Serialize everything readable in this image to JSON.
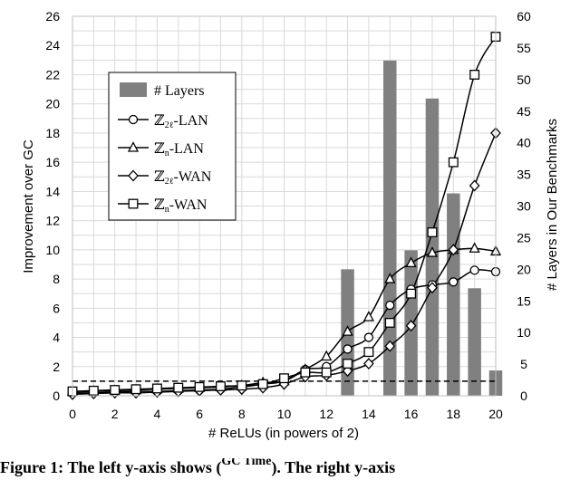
{
  "chart_data": {
    "type": "bar+line",
    "x": [
      0,
      1,
      2,
      3,
      4,
      5,
      6,
      7,
      8,
      9,
      10,
      11,
      12,
      13,
      14,
      15,
      16,
      17,
      18,
      19,
      20
    ],
    "xlabel": "# ReLUs (in powers of 2)",
    "ylabel": "Improvement over GC",
    "y2label": "# Layers in Our Benchmarks",
    "xlim": [
      0,
      20
    ],
    "ylim": [
      0,
      26
    ],
    "y2lim": [
      0,
      60
    ],
    "xticks": [
      "0",
      "2",
      "4",
      "6",
      "8",
      "10",
      "12",
      "14",
      "16",
      "18",
      "20"
    ],
    "yticks": [
      "0",
      "2",
      "4",
      "6",
      "8",
      "10",
      "12",
      "14",
      "16",
      "18",
      "20",
      "22",
      "24",
      "26"
    ],
    "y2ticks": [
      "0",
      "5",
      "10",
      "15",
      "20",
      "25",
      "30",
      "35",
      "40",
      "45",
      "50",
      "55",
      "60"
    ],
    "grid": true,
    "reference_line": {
      "y": 1,
      "style": "dashed"
    },
    "bars": {
      "name": "# Layers",
      "axis": "right",
      "x": [
        13,
        15,
        16,
        17,
        18,
        19,
        20
      ],
      "values": [
        20,
        53,
        23,
        47,
        32,
        17,
        4
      ]
    },
    "series": [
      {
        "name": "Z_{2^l}-LAN",
        "label_main": "ℤ",
        "label_sub": "2ℓ",
        "label_rest": "-LAN",
        "marker": "circle",
        "values": [
          0.2,
          0.2,
          0.25,
          0.3,
          0.3,
          0.35,
          0.4,
          0.45,
          0.6,
          0.8,
          1.0,
          1.8,
          2.0,
          3.2,
          4.0,
          6.2,
          7.3,
          7.6,
          7.8,
          8.6,
          8.5
        ]
      },
      {
        "name": "Z_n-LAN",
        "label_main": "ℤ",
        "label_sub": "n",
        "label_rest": "-LAN",
        "marker": "triangle",
        "values": [
          0.3,
          0.3,
          0.35,
          0.4,
          0.45,
          0.5,
          0.55,
          0.6,
          0.7,
          0.9,
          1.0,
          1.8,
          2.7,
          4.4,
          5.4,
          8.0,
          9.1,
          9.8,
          10.0,
          10.1,
          9.9
        ]
      },
      {
        "name": "Z_{2^l}-WAN",
        "label_main": "ℤ",
        "label_sub": "2ℓ",
        "label_rest": "-WAN",
        "marker": "diamond",
        "values": [
          0.1,
          0.15,
          0.2,
          0.2,
          0.25,
          0.3,
          0.35,
          0.4,
          0.45,
          0.55,
          0.8,
          1.3,
          1.4,
          1.7,
          2.2,
          3.4,
          4.8,
          7.4,
          10.0,
          14.4,
          18.0
        ]
      },
      {
        "name": "Z_n-WAN",
        "label_main": "ℤ",
        "label_sub": "n",
        "label_rest": "-WAN",
        "marker": "square",
        "values": [
          0.3,
          0.35,
          0.4,
          0.45,
          0.5,
          0.55,
          0.6,
          0.65,
          0.7,
          0.8,
          1.2,
          1.6,
          1.6,
          2.2,
          3.0,
          5.0,
          7.0,
          11.2,
          16.0,
          22.0,
          24.6
        ]
      }
    ],
    "legend_position": "upper-left",
    "bars_legend_label": "# Layers"
  },
  "caption": {
    "prefix": "Figure 1: The left y-axis shows (",
    "fraction_top": "GC Time",
    "suffix": "). The right y-axis"
  },
  "colors": {
    "bar": "#808080",
    "line": "#000000",
    "grid": "#d9d9d9"
  }
}
